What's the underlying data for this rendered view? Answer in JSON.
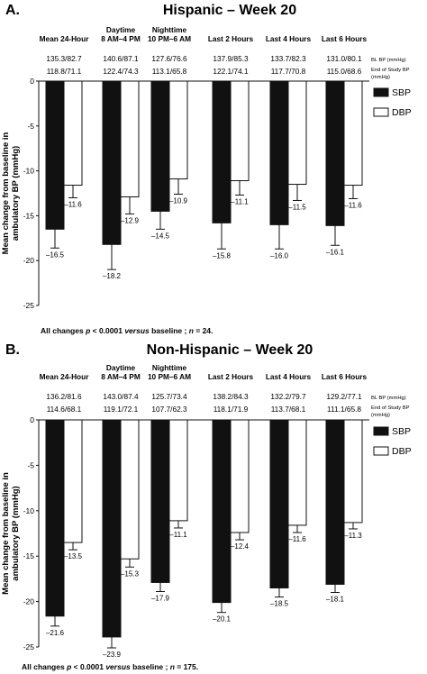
{
  "chart_data": [
    {
      "type": "bar",
      "panel_label": "A.",
      "title": "Hispanic – Week 20",
      "categories": [
        [
          "Mean 24-Hour"
        ],
        [
          "Daytime",
          "8 AM–4 PM"
        ],
        [
          "Nighttime",
          "10 PM–6 AM"
        ],
        [
          "Last 2 Hours"
        ],
        [
          "Last 4 Hours"
        ],
        [
          "Last 6 Hours"
        ]
      ],
      "bl_bp": [
        "135.3/82.7",
        "140.6/87.1",
        "127.6/76.6",
        "137.9/85.3",
        "133.7/82.3",
        "131.0/80.1"
      ],
      "end_bp": [
        "118.8/71.1",
        "122.4/74.3",
        "113.1/65.8",
        "122.1/74.1",
        "117.7/70.8",
        "115.0/68.6"
      ],
      "bl_label": "BL BP (mmHg)",
      "end_label": [
        "End of Study BP",
        "(mmHg)"
      ],
      "series": [
        {
          "name": "SBP",
          "values": [
            -16.5,
            -18.2,
            -14.5,
            -15.8,
            -16.0,
            -16.1
          ],
          "errors": [
            2.1,
            2.8,
            2.0,
            2.9,
            2.7,
            2.2
          ],
          "color": "#111111"
        },
        {
          "name": "DBP",
          "values": [
            -11.6,
            -12.9,
            -10.9,
            -11.1,
            -11.5,
            -11.6
          ],
          "errors": [
            1.4,
            1.9,
            1.7,
            1.6,
            1.8,
            1.5
          ],
          "color": "#ffffff"
        }
      ],
      "value_labels": {
        "SBP": [
          "–16.5",
          "–18.2",
          "–14.5",
          "–15.8",
          "–16.0",
          "–16.1"
        ],
        "DBP": [
          "–11.6",
          "–12.9",
          "–10.9",
          "–11.1",
          "–11.5",
          "–11.6"
        ]
      },
      "ylim": [
        -25,
        0
      ],
      "yticks": [
        0,
        -5,
        -10,
        -15,
        -20,
        -25
      ],
      "ylabel": [
        "Mean change from baseline in",
        "ambulatory BP (mmHg)"
      ],
      "legend_position": "right",
      "footnote": {
        "pre": "All changes ",
        "p": "p",
        "mid": " < 0.0001 ",
        "versus": "versus",
        "post": " baseline ; ",
        "n": "n",
        "post2": " = 24."
      }
    },
    {
      "type": "bar",
      "panel_label": "B.",
      "title": "Non-Hispanic – Week 20",
      "categories": [
        [
          "Mean 24-Hour"
        ],
        [
          "Daytime",
          "8 AM–4 PM"
        ],
        [
          "Nighttime",
          "10 PM–6 AM"
        ],
        [
          "Last 2 Hours"
        ],
        [
          "Last 4 Hours"
        ],
        [
          "Last 6 Hours"
        ]
      ],
      "bl_bp": [
        "136.2/81.6",
        "143.0/87.4",
        "125.7/73.4",
        "138.2/84.3",
        "132.2/79.7",
        "129.2/77.1"
      ],
      "end_bp": [
        "114.6/68.1",
        "119.1/72.1",
        "107.7/62.3",
        "118.1/71.9",
        "113.7/68.1",
        "111.1/65.8"
      ],
      "bl_label": "BL BP (mmHg)",
      "end_label": [
        "End of Study BP",
        "(mmHg)"
      ],
      "series": [
        {
          "name": "SBP",
          "values": [
            -21.6,
            -23.9,
            -17.9,
            -20.1,
            -18.5,
            -18.1
          ],
          "errors": [
            1.1,
            1.2,
            1.0,
            1.1,
            1.0,
            0.9
          ],
          "color": "#111111"
        },
        {
          "name": "DBP",
          "values": [
            -13.5,
            -15.3,
            -11.1,
            -12.4,
            -11.6,
            -11.3
          ],
          "errors": [
            0.8,
            0.9,
            0.8,
            0.8,
            0.8,
            0.7
          ],
          "color": "#ffffff"
        }
      ],
      "value_labels": {
        "SBP": [
          "–21.6",
          "–23.9",
          "–17.9",
          "–20.1",
          "–18.5",
          "–18.1"
        ],
        "DBP": [
          "–13.5",
          "–15.3",
          "–11.1",
          "–12.4",
          "–11.6",
          "–11.3"
        ]
      },
      "ylim": [
        -25,
        0
      ],
      "yticks": [
        0,
        -5,
        -10,
        -15,
        -20,
        -25
      ],
      "ylabel": [
        "Mean change from baseline in",
        "ambulatory BP (mmHg)"
      ],
      "legend_position": "right",
      "footnote": {
        "pre": "All changes ",
        "p": "p",
        "mid": " < 0.0001 ",
        "versus": "versus",
        "post": " baseline ; ",
        "n": "n",
        "post2": " = 175."
      }
    }
  ]
}
